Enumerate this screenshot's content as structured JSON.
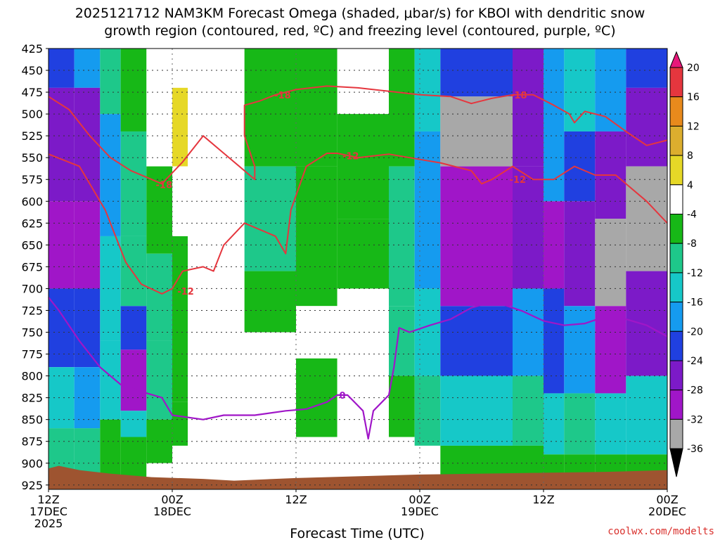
{
  "chart_data": {
    "type": "heatmap",
    "title_line1": "2025121712 NAM3KM Forecast Omega (shaded, μbar/s) for KBOI with dendritic snow",
    "title_line2": "growth region (contoured, red, ºC) and freezing level (contoured, purple, ºC)",
    "xlabel": "Forecast Time (UTC)",
    "ylabel": "",
    "credit": "coolwx.com/modelts",
    "x_ticks": [
      {
        "hour": 0,
        "line1": "12Z",
        "line2": "17DEC",
        "line3": "2025"
      },
      {
        "hour": 12,
        "line1": "00Z",
        "line2": "18DEC",
        "line3": ""
      },
      {
        "hour": 24,
        "line1": "12Z",
        "line2": "",
        "line3": ""
      },
      {
        "hour": 36,
        "line1": "00Z",
        "line2": "19DEC",
        "line3": ""
      },
      {
        "hour": 48,
        "line1": "12Z",
        "line2": "",
        "line3": ""
      },
      {
        "hour": 60,
        "line1": "00Z",
        "line2": "20DEC",
        "line3": ""
      }
    ],
    "x_range_hours": [
      0,
      60
    ],
    "y_ticks": [
      425,
      450,
      475,
      500,
      525,
      550,
      575,
      600,
      625,
      650,
      675,
      700,
      725,
      750,
      775,
      800,
      825,
      850,
      875,
      900,
      925
    ],
    "y_range_hpa": [
      425,
      930
    ],
    "grid": true,
    "colorbar_levels": [
      20,
      16,
      12,
      8,
      4,
      -4,
      -8,
      -12,
      -16,
      -20,
      -24,
      -28,
      -32,
      -36
    ],
    "colorbar_colors": [
      "#e8187a",
      "#e5363e",
      "#e88a1c",
      "#dcae2e",
      "#e6d827",
      "#ffffff",
      "#17b817",
      "#1ec88a",
      "#16c8c8",
      "#159bef",
      "#2040e0",
      "#7c1ac8",
      "#a016c8",
      "#a8a8a8",
      "#000000"
    ],
    "omega_field": [
      {
        "t0": 0,
        "t1": 2.5,
        "cells": [
          [
            425,
            470,
            -22
          ],
          [
            470,
            600,
            -26
          ],
          [
            600,
            700,
            -30
          ],
          [
            700,
            790,
            -20
          ],
          [
            790,
            860,
            -14
          ],
          [
            860,
            930,
            -8
          ]
        ]
      },
      {
        "t0": 2.5,
        "cells": [
          [
            425,
            470,
            -18
          ],
          [
            470,
            600,
            -24
          ],
          [
            600,
            700,
            -30
          ],
          [
            700,
            790,
            -22
          ],
          [
            790,
            860,
            -16
          ],
          [
            860,
            930,
            -9
          ]
        ],
        "t1": 5
      },
      {
        "t0": 5,
        "t1": 7,
        "cells": [
          [
            425,
            500,
            -10
          ],
          [
            500,
            640,
            -16
          ],
          [
            640,
            760,
            -12
          ],
          [
            760,
            850,
            -12
          ],
          [
            850,
            930,
            -7
          ]
        ]
      },
      {
        "t0": 7,
        "t1": 9.5,
        "cells": [
          [
            425,
            520,
            -6
          ],
          [
            520,
            640,
            -8
          ],
          [
            640,
            720,
            -10
          ],
          [
            720,
            770,
            -20
          ],
          [
            770,
            840,
            -30
          ],
          [
            840,
            870,
            -14
          ],
          [
            870,
            930,
            -7
          ]
        ]
      },
      {
        "t0": 9.5,
        "t1": 12,
        "cells": [
          [
            425,
            560,
            0
          ],
          [
            560,
            660,
            -6
          ],
          [
            660,
            760,
            -10
          ],
          [
            760,
            850,
            -8
          ],
          [
            850,
            900,
            -5
          ],
          [
            900,
            930,
            0
          ]
        ]
      },
      {
        "t0": 12,
        "t1": 13.5,
        "cells": [
          [
            425,
            470,
            0
          ],
          [
            470,
            560,
            6
          ],
          [
            560,
            640,
            0
          ],
          [
            640,
            700,
            -5
          ],
          [
            700,
            830,
            -6
          ],
          [
            830,
            880,
            -5
          ],
          [
            880,
            930,
            0
          ]
        ]
      },
      {
        "t0": 13.5,
        "t1": 19,
        "cells": [
          [
            425,
            930,
            0
          ]
        ]
      },
      {
        "t0": 19,
        "t1": 24,
        "cells": [
          [
            425,
            560,
            -6
          ],
          [
            560,
            680,
            -9
          ],
          [
            680,
            750,
            -5
          ],
          [
            750,
            930,
            0
          ]
        ]
      },
      {
        "t0": 24,
        "t1": 28,
        "cells": [
          [
            425,
            560,
            -6
          ],
          [
            560,
            720,
            -5
          ],
          [
            720,
            780,
            0
          ],
          [
            780,
            870,
            -5
          ],
          [
            870,
            930,
            0
          ]
        ]
      },
      {
        "t0": 28,
        "t1": 33,
        "cells": [
          [
            425,
            500,
            0
          ],
          [
            500,
            620,
            -5
          ],
          [
            620,
            700,
            -5
          ],
          [
            700,
            930,
            0
          ]
        ]
      },
      {
        "t0": 33,
        "t1": 35.5,
        "cells": [
          [
            425,
            560,
            -7
          ],
          [
            560,
            720,
            -8
          ],
          [
            720,
            800,
            -10
          ],
          [
            800,
            870,
            -7
          ],
          [
            870,
            930,
            0
          ]
        ]
      },
      {
        "t0": 35.5,
        "t1": 38,
        "cells": [
          [
            425,
            520,
            -14
          ],
          [
            520,
            700,
            -18
          ],
          [
            700,
            800,
            -14
          ],
          [
            800,
            880,
            -9
          ],
          [
            880,
            930,
            0
          ]
        ]
      },
      {
        "t0": 38,
        "t1": 42,
        "cells": [
          [
            425,
            480,
            -22
          ],
          [
            480,
            560,
            -34
          ],
          [
            560,
            720,
            -28
          ],
          [
            720,
            800,
            -20
          ],
          [
            800,
            880,
            -12
          ],
          [
            880,
            930,
            -5
          ]
        ]
      },
      {
        "t0": 42,
        "t1": 45,
        "cells": [
          [
            425,
            480,
            -22
          ],
          [
            480,
            560,
            -34
          ],
          [
            560,
            720,
            -28
          ],
          [
            720,
            800,
            -22
          ],
          [
            800,
            880,
            -12
          ],
          [
            880,
            930,
            -5
          ]
        ]
      },
      {
        "t0": 45,
        "t1": 48,
        "cells": [
          [
            425,
            560,
            -24
          ],
          [
            560,
            700,
            -26
          ],
          [
            700,
            800,
            -18
          ],
          [
            800,
            880,
            -10
          ],
          [
            880,
            930,
            -5
          ]
        ]
      },
      {
        "t0": 48,
        "t1": 50,
        "cells": [
          [
            425,
            600,
            -18
          ],
          [
            600,
            700,
            -30
          ],
          [
            700,
            820,
            -22
          ],
          [
            820,
            890,
            -12
          ],
          [
            890,
            930,
            -5
          ]
        ]
      },
      {
        "t0": 50,
        "t1": 53,
        "cells": [
          [
            425,
            520,
            -14
          ],
          [
            520,
            600,
            -20
          ],
          [
            600,
            720,
            -26
          ],
          [
            720,
            820,
            -18
          ],
          [
            820,
            890,
            -10
          ],
          [
            890,
            930,
            -5
          ]
        ]
      },
      {
        "t0": 53,
        "t1": 56,
        "cells": [
          [
            425,
            520,
            -16
          ],
          [
            520,
            620,
            -26
          ],
          [
            620,
            720,
            -34
          ],
          [
            720,
            820,
            -28
          ],
          [
            820,
            890,
            -14
          ],
          [
            890,
            930,
            -6
          ]
        ]
      },
      {
        "t0": 56,
        "t1": 60,
        "cells": [
          [
            425,
            470,
            -20
          ],
          [
            470,
            560,
            -26
          ],
          [
            560,
            680,
            -34
          ],
          [
            680,
            800,
            -24
          ],
          [
            800,
            890,
            -12
          ],
          [
            890,
            930,
            -6
          ]
        ]
      }
    ],
    "contour_minus12": [
      [
        0,
        546
      ],
      [
        3,
        560
      ],
      [
        5.5,
        610
      ],
      [
        7.5,
        670
      ],
      [
        9,
        695
      ],
      [
        11,
        706
      ],
      [
        12,
        700
      ],
      [
        13,
        680
      ],
      [
        15,
        675
      ],
      [
        16,
        680
      ],
      [
        17,
        650
      ],
      [
        19,
        625
      ],
      [
        22,
        640
      ],
      [
        23,
        660
      ],
      [
        23.5,
        610
      ],
      [
        25,
        560
      ],
      [
        27,
        545
      ],
      [
        28,
        545
      ],
      [
        30,
        550
      ],
      [
        33,
        546
      ],
      [
        36,
        552
      ],
      [
        38,
        556
      ],
      [
        41,
        565
      ],
      [
        42,
        580
      ],
      [
        43,
        575
      ],
      [
        45,
        560
      ],
      [
        47,
        575
      ],
      [
        49,
        575
      ],
      [
        51,
        560
      ],
      [
        53,
        570
      ],
      [
        55,
        570
      ],
      [
        58,
        600
      ],
      [
        60,
        625
      ]
    ],
    "contour_minus18": [
      [
        0,
        480
      ],
      [
        2,
        495
      ],
      [
        4,
        525
      ],
      [
        6,
        550
      ],
      [
        8,
        565
      ],
      [
        10,
        575
      ],
      [
        11,
        580
      ],
      [
        13,
        555
      ],
      [
        15,
        525
      ],
      [
        17,
        545
      ],
      [
        19,
        565
      ],
      [
        20,
        575
      ],
      [
        20,
        560
      ],
      [
        19,
        525
      ],
      [
        19,
        490
      ],
      [
        20.5,
        485
      ],
      [
        22,
        478
      ],
      [
        24,
        472
      ],
      [
        27,
        468
      ],
      [
        30,
        470
      ],
      [
        33,
        474
      ],
      [
        36,
        478
      ],
      [
        39,
        480
      ],
      [
        41,
        488
      ],
      [
        43,
        482
      ],
      [
        45,
        478
      ],
      [
        47,
        478
      ],
      [
        49,
        490
      ],
      [
        50.5,
        500
      ],
      [
        51,
        510
      ],
      [
        52,
        497
      ],
      [
        54,
        503
      ],
      [
        56,
        520
      ],
      [
        58,
        536
      ],
      [
        60,
        530
      ]
    ],
    "contour_0": [
      [
        0,
        710
      ],
      [
        1,
        725
      ],
      [
        3,
        760
      ],
      [
        5,
        790
      ],
      [
        7,
        810
      ],
      [
        9,
        818
      ],
      [
        11,
        825
      ],
      [
        12,
        845
      ],
      [
        15,
        850
      ],
      [
        17,
        845
      ],
      [
        20,
        845
      ],
      [
        23,
        840
      ],
      [
        25,
        838
      ],
      [
        27,
        830
      ],
      [
        28,
        822
      ],
      [
        29,
        822
      ],
      [
        30.5,
        840
      ],
      [
        31,
        872
      ],
      [
        31.5,
        840
      ],
      [
        33,
        822
      ],
      [
        33.5,
        790
      ],
      [
        34,
        745
      ],
      [
        35,
        750
      ],
      [
        37,
        742
      ],
      [
        39,
        735
      ],
      [
        41,
        722
      ],
      [
        43,
        715
      ],
      [
        44,
        718
      ],
      [
        46,
        726
      ],
      [
        48,
        737
      ],
      [
        50,
        742
      ],
      [
        52,
        740
      ],
      [
        54,
        732
      ],
      [
        56,
        735
      ],
      [
        58,
        742
      ],
      [
        60,
        755
      ]
    ],
    "contour_labels": [
      {
        "text": "-18",
        "t": 22.7,
        "p": 478,
        "color": "#e5363e"
      },
      {
        "text": "-12",
        "t": 29.3,
        "p": 548,
        "color": "#e5363e"
      },
      {
        "text": "-18",
        "t": 45.6,
        "p": 478,
        "color": "#e5363e"
      },
      {
        "text": "-12",
        "t": 45.5,
        "p": 575,
        "color": "#e5363e"
      },
      {
        "text": "-18",
        "t": 11.2,
        "p": 581,
        "color": "#e5363e"
      },
      {
        "text": "-12",
        "t": 13.3,
        "p": 703,
        "color": "#e5363e"
      },
      {
        "text": "0",
        "t": 28.5,
        "p": 822,
        "color": "#a016c8"
      }
    ],
    "terrain": [
      [
        0,
        906
      ],
      [
        1,
        903
      ],
      [
        3,
        908
      ],
      [
        6,
        912
      ],
      [
        10,
        916
      ],
      [
        15,
        918
      ],
      [
        18,
        920
      ],
      [
        24,
        917
      ],
      [
        30,
        915
      ],
      [
        36,
        913
      ],
      [
        42,
        912
      ],
      [
        48,
        911
      ],
      [
        54,
        910
      ],
      [
        60,
        908
      ]
    ],
    "colors": {
      "terrain": "#9e5430",
      "contour_dgz": "#e5363e",
      "contour_freezing": "#a016c8",
      "credit": "#d9302c"
    }
  }
}
